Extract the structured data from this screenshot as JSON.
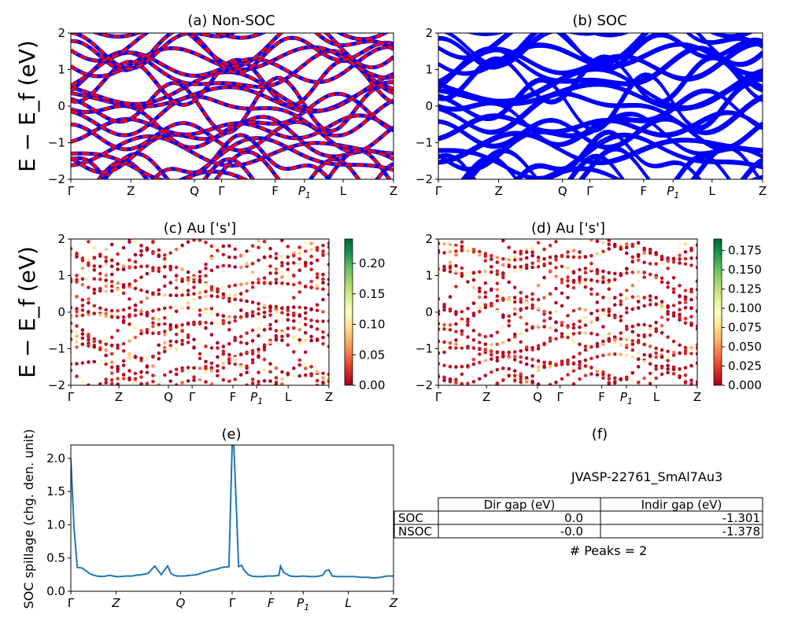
{
  "chart_data": [
    {
      "id": "a",
      "type": "line",
      "title": "(a) Non-SOC",
      "ylabel": "E − E_f (eV)",
      "ylim": [
        -2,
        2
      ],
      "yticks": [
        "−2",
        "−1",
        "0",
        "1",
        "2"
      ],
      "kpath": [
        "Γ",
        "Z",
        "Q",
        "Γ",
        "F",
        "P1",
        "L",
        "Z"
      ],
      "series": [
        {
          "spin": "up",
          "color": "#0000ff"
        },
        {
          "spin": "down",
          "color": "#ff0000"
        }
      ]
    },
    {
      "id": "b",
      "type": "line",
      "title": "(b) SOC",
      "ylim": [
        -2,
        2
      ],
      "yticks": [
        "−2",
        "−1",
        "0",
        "1",
        "2"
      ],
      "kpath": [
        "Γ",
        "Z",
        "Q",
        "Γ",
        "F",
        "P1",
        "L",
        "Z"
      ],
      "series": [
        {
          "color": "#0000ff"
        }
      ]
    },
    {
      "id": "c",
      "type": "scatter",
      "title": "(c)  Au ['s']",
      "ylabel": "E − E_f (eV)",
      "ylim": [
        -2,
        2
      ],
      "yticks": [
        "−2",
        "−1",
        "0",
        "1",
        "2"
      ],
      "kpath": [
        "Γ",
        "Z",
        "Q",
        "Γ",
        "F",
        "P1",
        "L",
        "Z"
      ],
      "colorbar": {
        "min": 0.0,
        "max": 0.24,
        "ticks": [
          "0.00",
          "0.05",
          "0.10",
          "0.15",
          "0.20"
        ],
        "cmap": "RdYlGn"
      }
    },
    {
      "id": "d",
      "type": "scatter",
      "title": "(d) Au ['s']",
      "ylim": [
        -2,
        2
      ],
      "yticks": [
        "−2",
        "−1",
        "0",
        "1",
        "2"
      ],
      "kpath": [
        "Γ",
        "Z",
        "Q",
        "Γ",
        "F",
        "P1",
        "L",
        "Z"
      ],
      "colorbar": {
        "min": 0.0,
        "max": 0.19,
        "ticks": [
          "0.000",
          "0.025",
          "0.050",
          "0.075",
          "0.100",
          "0.125",
          "0.150",
          "0.175"
        ],
        "cmap": "RdYlGn"
      }
    },
    {
      "id": "e",
      "type": "line",
      "title": "(e)",
      "ylabel": "SOC spillage (chg. den. unit)",
      "ylim": [
        0,
        2.2
      ],
      "yticks": [
        "0.0",
        "0.5",
        "1.0",
        "1.5",
        "2.0"
      ],
      "kpath": [
        "Γ",
        "Z",
        "Q",
        "Γ",
        "F",
        "P1",
        "L",
        "Z"
      ],
      "color": "#1f77b4",
      "x": [
        0,
        0.01,
        0.02,
        0.035,
        0.06,
        0.08,
        0.1,
        0.12,
        0.14,
        0.155,
        0.17,
        0.19,
        0.2,
        0.22,
        0.24,
        0.26,
        0.28,
        0.3,
        0.31,
        0.32,
        0.33,
        0.35,
        0.37,
        0.39,
        0.41,
        0.43,
        0.45,
        0.47,
        0.49,
        0.5,
        0.505,
        0.515,
        0.52,
        0.53,
        0.535,
        0.55,
        0.56,
        0.575,
        0.59,
        0.61,
        0.63,
        0.645,
        0.65,
        0.66,
        0.68,
        0.7,
        0.72,
        0.74,
        0.76,
        0.78,
        0.79,
        0.8,
        0.81,
        0.83,
        0.85,
        0.88,
        0.9,
        0.92,
        0.94,
        0.96,
        0.98,
        1.0
      ],
      "values": [
        2.0,
        0.95,
        0.36,
        0.35,
        0.26,
        0.23,
        0.22,
        0.24,
        0.22,
        0.22,
        0.23,
        0.23,
        0.24,
        0.25,
        0.27,
        0.38,
        0.25,
        0.38,
        0.27,
        0.24,
        0.23,
        0.23,
        0.24,
        0.25,
        0.28,
        0.31,
        0.33,
        0.36,
        0.37,
        2.2,
        2.2,
        1.0,
        0.37,
        0.39,
        0.33,
        0.25,
        0.23,
        0.22,
        0.22,
        0.23,
        0.23,
        0.24,
        0.38,
        0.28,
        0.23,
        0.22,
        0.23,
        0.22,
        0.22,
        0.24,
        0.31,
        0.32,
        0.23,
        0.22,
        0.22,
        0.22,
        0.21,
        0.21,
        0.2,
        0.21,
        0.23,
        0.23
      ]
    }
  ],
  "info_panel": {
    "title": "(f)",
    "material": "JVASP-22761_SmAl7Au3",
    "table": {
      "columns": [
        "",
        "Dir gap (eV)",
        "Indir gap (eV)"
      ],
      "rows": [
        [
          "SOC",
          "0.0",
          "-1.301"
        ],
        [
          "NSOC",
          "-0.0",
          "-1.378"
        ]
      ]
    },
    "peaks": "# Peaks = 2"
  }
}
